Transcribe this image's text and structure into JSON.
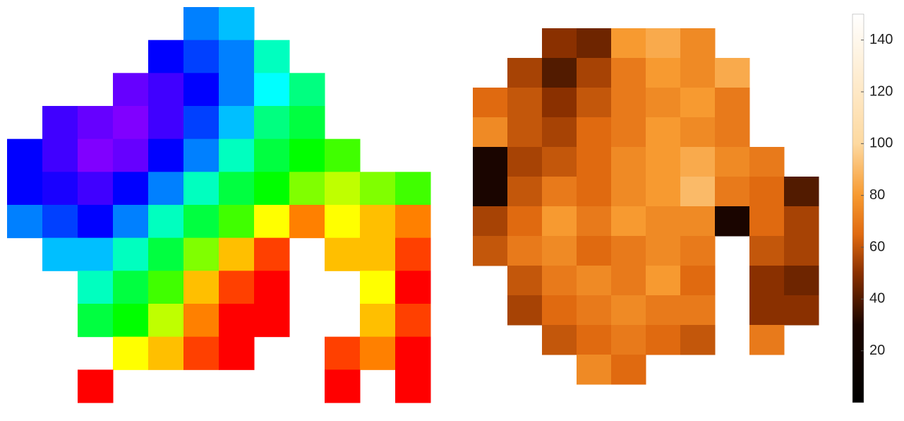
{
  "chart_data": [
    {
      "type": "heatmap",
      "colormap": "hue",
      "zlim": [
        0,
        100
      ],
      "values": [
        [
          null,
          null,
          null,
          null,
          null,
          30,
          35,
          null,
          null,
          null,
          null,
          null
        ],
        [
          null,
          null,
          null,
          null,
          20,
          25,
          30,
          45,
          null,
          null,
          null,
          null
        ],
        [
          null,
          null,
          null,
          12,
          15,
          20,
          30,
          40,
          50,
          null,
          null,
          null
        ],
        [
          null,
          15,
          12,
          10,
          15,
          25,
          35,
          50,
          55,
          null,
          null,
          null
        ],
        [
          20,
          15,
          10,
          12,
          20,
          30,
          45,
          55,
          60,
          65,
          null,
          null
        ],
        [
          20,
          18,
          15,
          20,
          30,
          45,
          55,
          60,
          70,
          75,
          70,
          65
        ],
        [
          30,
          25,
          20,
          30,
          45,
          55,
          65,
          80,
          90,
          80,
          85,
          90
        ],
        [
          null,
          35,
          35,
          45,
          55,
          70,
          85,
          95,
          null,
          85,
          85,
          95
        ],
        [
          null,
          null,
          45,
          55,
          65,
          85,
          95,
          100,
          null,
          null,
          80,
          100
        ],
        [
          null,
          null,
          55,
          60,
          75,
          90,
          100,
          100,
          null,
          null,
          85,
          95
        ],
        [
          null,
          null,
          null,
          80,
          85,
          95,
          100,
          null,
          null,
          95,
          90,
          100
        ],
        [
          null,
          null,
          100,
          null,
          null,
          null,
          null,
          null,
          null,
          100,
          null,
          100
        ]
      ]
    },
    {
      "type": "heatmap",
      "colormap": [
        [
          0,
          "#000000"
        ],
        [
          30,
          "#1a0500"
        ],
        [
          50,
          "#8a3000"
        ],
        [
          65,
          "#e06a10"
        ],
        [
          80,
          "#f79a30"
        ],
        [
          100,
          "#fdd9a0"
        ],
        [
          150,
          "#ffffff"
        ]
      ],
      "zlim": [
        0,
        150
      ],
      "zticks": [
        20,
        40,
        60,
        80,
        100,
        120,
        140
      ],
      "values": [
        [
          null,
          null,
          50,
          45,
          80,
          85,
          75,
          null,
          null,
          null
        ],
        [
          null,
          55,
          40,
          55,
          70,
          80,
          75,
          85,
          null,
          null
        ],
        [
          65,
          60,
          50,
          60,
          70,
          75,
          80,
          70,
          null,
          null
        ],
        [
          75,
          60,
          55,
          65,
          70,
          80,
          75,
          70,
          null,
          null
        ],
        [
          30,
          55,
          60,
          65,
          75,
          80,
          85,
          75,
          70,
          null
        ],
        [
          30,
          60,
          70,
          65,
          75,
          80,
          90,
          70,
          65,
          40
        ],
        [
          55,
          65,
          80,
          70,
          80,
          75,
          75,
          30,
          65,
          55
        ],
        [
          60,
          70,
          75,
          65,
          70,
          75,
          70,
          null,
          60,
          55
        ],
        [
          null,
          60,
          70,
          75,
          70,
          80,
          65,
          null,
          50,
          45
        ],
        [
          null,
          55,
          65,
          70,
          75,
          70,
          70,
          null,
          50,
          50
        ],
        [
          null,
          null,
          60,
          65,
          70,
          65,
          60,
          null,
          70,
          null
        ],
        [
          null,
          null,
          null,
          75,
          65,
          null,
          null,
          null,
          null,
          null
        ]
      ]
    }
  ]
}
